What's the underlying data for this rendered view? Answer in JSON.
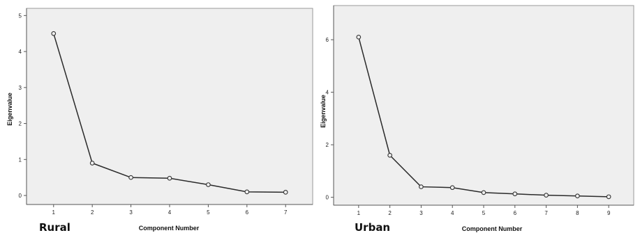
{
  "chart_data": [
    {
      "type": "line",
      "panel_label": "Rural",
      "xlabel": "Component Number",
      "ylabel": "Eigenvalue",
      "x": [
        1,
        2,
        3,
        4,
        5,
        6,
        7
      ],
      "values": [
        4.5,
        0.9,
        0.5,
        0.48,
        0.3,
        0.1,
        0.09
      ],
      "xlim": [
        0.3,
        7.7
      ],
      "ylim": [
        -0.25,
        5.2
      ],
      "yticks": [
        "0",
        "1",
        "2",
        "3",
        "4",
        "5"
      ],
      "xticks": [
        "1",
        "2",
        "3",
        "4",
        "5",
        "6",
        "7"
      ],
      "grid": false,
      "plot_background": "#efefef",
      "line_color": "#2a2a2a"
    },
    {
      "type": "line",
      "panel_label": "Urban",
      "xlabel": "Component Number",
      "ylabel": "Eigenvalue",
      "x": [
        1,
        2,
        3,
        4,
        5,
        6,
        7,
        8,
        9
      ],
      "values": [
        6.1,
        1.6,
        0.4,
        0.37,
        0.18,
        0.13,
        0.08,
        0.05,
        0.02
      ],
      "xlim": [
        0.2,
        9.8
      ],
      "ylim": [
        -0.3,
        7.3
      ],
      "yticks": [
        "0",
        "2",
        "4",
        "6"
      ],
      "xticks": [
        "1",
        "2",
        "3",
        "4",
        "5",
        "6",
        "7",
        "8",
        "9"
      ],
      "grid": false,
      "plot_background": "#efefef",
      "line_color": "#2a2a2a"
    }
  ]
}
